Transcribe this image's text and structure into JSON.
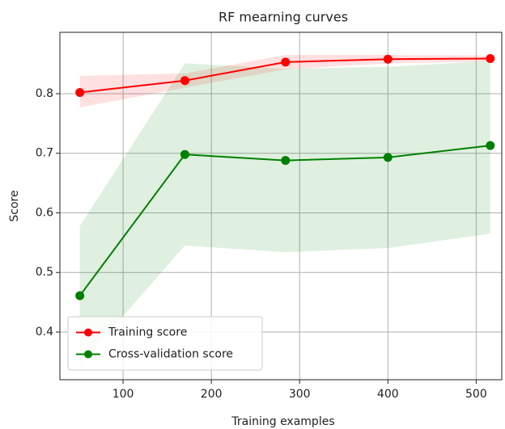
{
  "chart_data": {
    "type": "line",
    "title": "RF mearning curves",
    "x_label": "Training examples",
    "y_label": "Score",
    "x": [
      51,
      170,
      284,
      400,
      516
    ],
    "series": [
      {
        "name": "Training score",
        "color": "#ff0000",
        "values": [
          0.802,
          0.822,
          0.853,
          0.858,
          0.859
        ],
        "lower": [
          0.777,
          0.81,
          0.841,
          0.851,
          0.854
        ],
        "upper": [
          0.83,
          0.834,
          0.865,
          0.865,
          0.864
        ]
      },
      {
        "name": "Cross-validation score",
        "color": "#008000",
        "values": [
          0.461,
          0.698,
          0.688,
          0.693,
          0.713
        ],
        "lower": [
          0.344,
          0.545,
          0.534,
          0.541,
          0.565
        ],
        "upper": [
          0.578,
          0.851,
          0.842,
          0.845,
          0.855
        ]
      }
    ],
    "xlim": [
      28.4,
      529
    ],
    "xticks": [
      100,
      200,
      300,
      400,
      500
    ],
    "ylim": [
      0.32,
      0.903
    ],
    "yticks": [
      0.4,
      0.5,
      0.6,
      0.7,
      0.8
    ],
    "grid": true,
    "legend": "lower left"
  }
}
